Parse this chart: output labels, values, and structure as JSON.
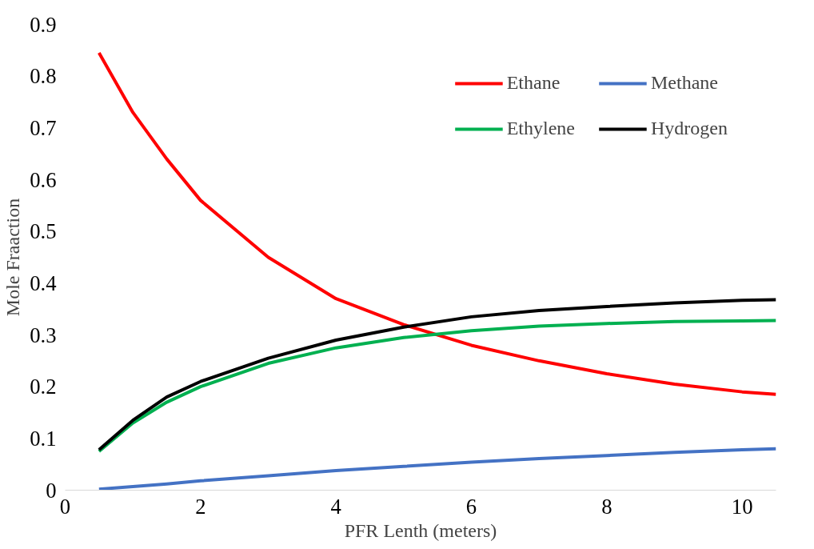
{
  "chart_data": {
    "type": "line",
    "xlabel": "PFR Lenth (meters)",
    "ylabel": "Mole Fraaction",
    "xlim": [
      0,
      10.5
    ],
    "ylim": [
      0,
      0.9
    ],
    "xticks": [
      0,
      2,
      4,
      6,
      8,
      10
    ],
    "yticks": [
      0,
      0.1,
      0.2,
      0.3,
      0.4,
      0.5,
      0.6,
      0.7,
      0.8,
      0.9
    ],
    "grid": false,
    "legend": "top right",
    "marker": "none",
    "line_style": "solid",
    "x": [
      0.5,
      1,
      1.5,
      2,
      3,
      4,
      5,
      6,
      7,
      8,
      9,
      10,
      10.5
    ],
    "series": [
      {
        "name": "Ethane",
        "color": "#ff0000",
        "values": [
          0.845,
          0.73,
          0.64,
          0.56,
          0.45,
          0.37,
          0.32,
          0.28,
          0.25,
          0.225,
          0.205,
          0.19,
          0.185
        ]
      },
      {
        "name": "Ethylene",
        "color": "#00b050",
        "values": [
          0.075,
          0.13,
          0.17,
          0.2,
          0.245,
          0.275,
          0.295,
          0.308,
          0.317,
          0.322,
          0.326,
          0.327,
          0.328
        ]
      },
      {
        "name": "Methane",
        "color": "#4472c4",
        "values": [
          0.002,
          0.007,
          0.012,
          0.018,
          0.028,
          0.038,
          0.046,
          0.054,
          0.061,
          0.067,
          0.073,
          0.078,
          0.08
        ]
      },
      {
        "name": "Hydrogen",
        "color": "#000000",
        "values": [
          0.078,
          0.135,
          0.18,
          0.21,
          0.255,
          0.29,
          0.315,
          0.335,
          0.347,
          0.355,
          0.362,
          0.367,
          0.368
        ]
      }
    ]
  }
}
